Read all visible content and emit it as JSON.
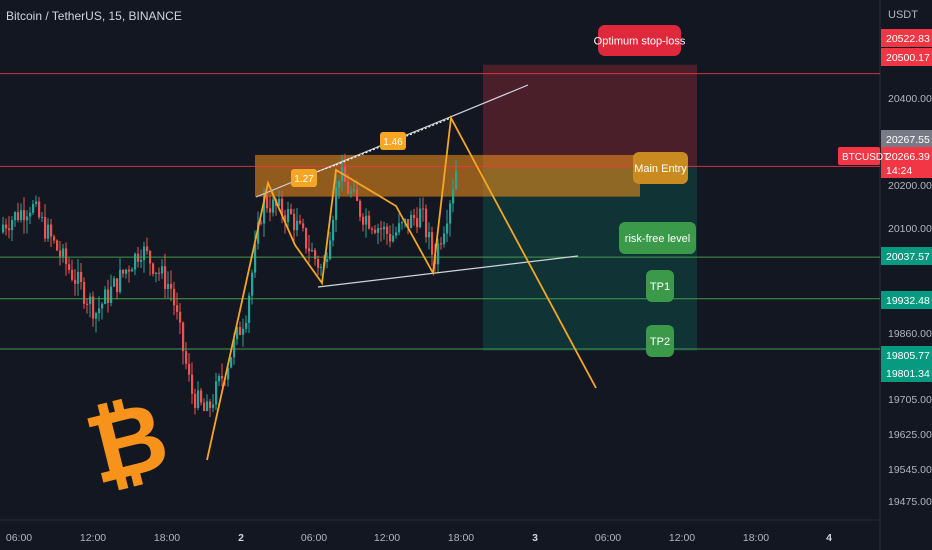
{
  "header": {
    "symbol_line": "Bitcoin / TetherUS, 15, BINANCE",
    "currency": "USDT"
  },
  "colors": {
    "background": "#131722",
    "up": "#26a69a",
    "down": "#ef5350",
    "orange": "#f7931a",
    "pattern": "#f5a623",
    "red_line": "#f23645",
    "green_line": "#4caf50",
    "trendline": "#d1d4dc"
  },
  "chart_data": {
    "type": "candlestick",
    "symbol": "BTCUSDT",
    "interval": "15",
    "exchange": "BINANCE",
    "ylim": [
      19420,
      20595
    ],
    "y_ticks": [
      "20400.00",
      "20200.00",
      "20100.00",
      "19860.00",
      "19705.00",
      "19625.00",
      "19545.00",
      "19475.00"
    ],
    "x_ticks": [
      "06:00",
      "12:00",
      "18:00",
      "2",
      "06:00",
      "12:00",
      "18:00",
      "3",
      "06:00",
      "12:00",
      "18:00",
      "4"
    ],
    "price_badges": [
      {
        "label": "20522.83",
        "value": 20522.83,
        "color": "#f23645"
      },
      {
        "label": "20500.17",
        "value": 20500.17,
        "color": "#f23645"
      },
      {
        "label": "20267.55",
        "value": 20267.55,
        "color": "#787b86"
      },
      {
        "label": "20266.39",
        "value": 20266.39,
        "color": "#f23645"
      },
      {
        "label": "20037.57",
        "value": 20037.57,
        "color": "#089981"
      },
      {
        "label": "19932.48",
        "value": 19932.48,
        "color": "#089981"
      },
      {
        "label": "19805.77",
        "value": 19805.77,
        "color": "#089981"
      },
      {
        "label": "19801.34",
        "value": 19801.34,
        "color": "#089981"
      }
    ],
    "last_price": {
      "ticker": "BTCUSDT",
      "price": "20266.39",
      "countdown": "14:24"
    },
    "horizontal_lines": [
      {
        "value": 20500.17,
        "color": "red"
      },
      {
        "value": 20266.39,
        "color": "red"
      },
      {
        "value": 20037.57,
        "color": "green"
      },
      {
        "value": 19932.48,
        "color": "green"
      },
      {
        "value": 19805.77,
        "color": "green"
      }
    ],
    "annotations": {
      "stop_loss": "Optimum stop-loss",
      "entry": "Main Entry",
      "risk_free": "risk-free level",
      "tp1": "TP1",
      "tp2": "TP2",
      "fib_1": "1.27",
      "fib_2": "1.46"
    },
    "entry_zone": [
      20190,
      20295
    ],
    "position": {
      "stop": 20522.83,
      "entry": 20266.39,
      "target": 19801.34
    },
    "zigzag_prices": [
      19575,
      20190,
      20050,
      20000,
      20250,
      20110,
      20010,
      20195,
      20015,
      20320,
      20120,
      19715
    ]
  }
}
